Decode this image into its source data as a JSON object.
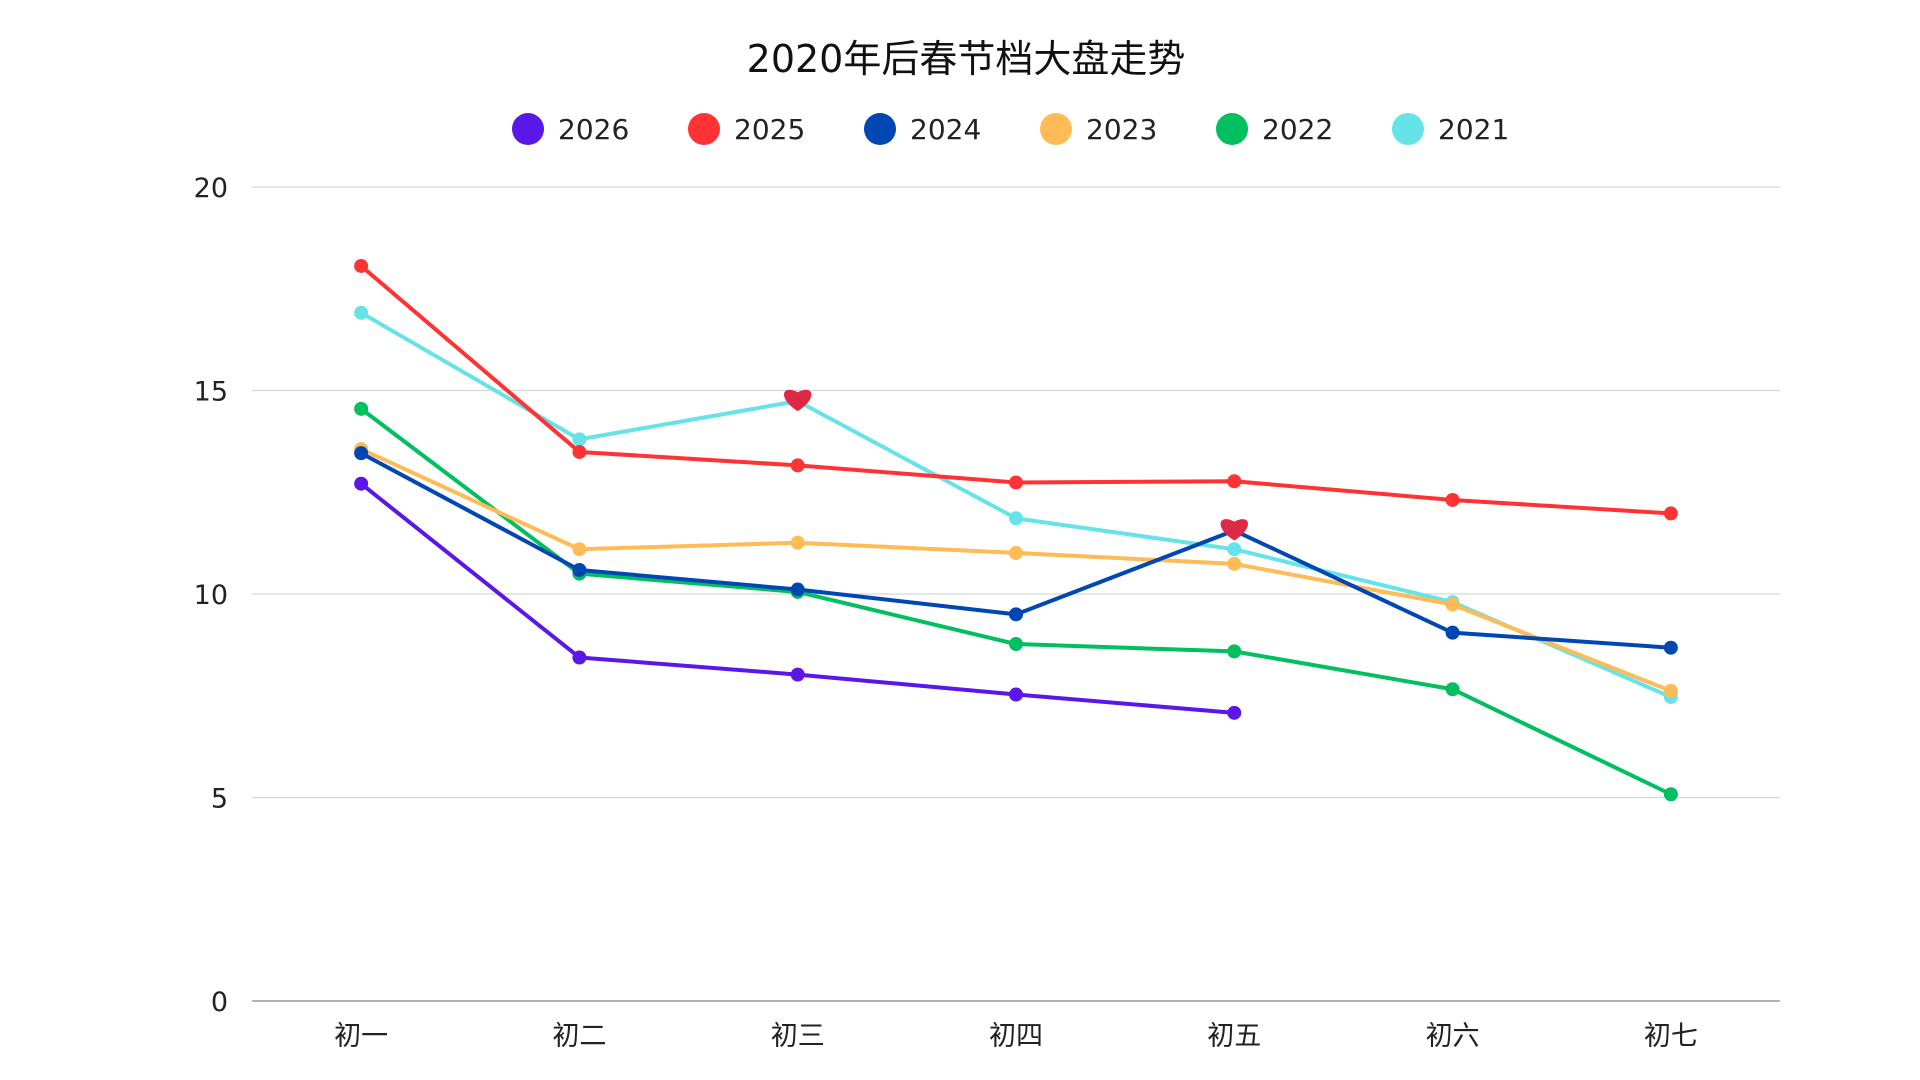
{
  "chart_data": {
    "type": "line",
    "title": "2020年后春节档大盘走势",
    "categories": [
      "初一",
      "初二",
      "初三",
      "初四",
      "初五",
      "初六",
      "初七"
    ],
    "ylim": [
      0,
      20
    ],
    "yticks": [
      0,
      5,
      10,
      15,
      20
    ],
    "grid": true,
    "legend_position": "top",
    "series": [
      {
        "name": "2026",
        "color": "#5b17e8",
        "values": [
          12.71,
          8.44,
          8.02,
          7.53,
          7.08,
          null,
          null
        ]
      },
      {
        "name": "2025",
        "color": "#ff3333",
        "values": [
          18.06,
          13.49,
          13.16,
          12.74,
          12.77,
          12.31,
          11.98
        ]
      },
      {
        "name": "2024",
        "color": "#0047b3",
        "values": [
          13.46,
          10.59,
          10.11,
          9.5,
          11.56,
          9.05,
          8.68
        ],
        "heart_markers": [
          "初五"
        ]
      },
      {
        "name": "2023",
        "color": "#ffbb55",
        "values": [
          13.56,
          11.1,
          11.26,
          11.01,
          10.74,
          9.74,
          7.62
        ]
      },
      {
        "name": "2022",
        "color": "#00bf5f",
        "values": [
          14.55,
          10.5,
          10.05,
          8.77,
          8.59,
          7.66,
          5.08
        ]
      },
      {
        "name": "2021",
        "color": "#66e3e8",
        "values": [
          16.91,
          13.8,
          14.74,
          11.86,
          11.1,
          9.8,
          7.47
        ],
        "heart_markers": [
          "初三"
        ]
      }
    ],
    "heart_color": "#dc2a44"
  }
}
